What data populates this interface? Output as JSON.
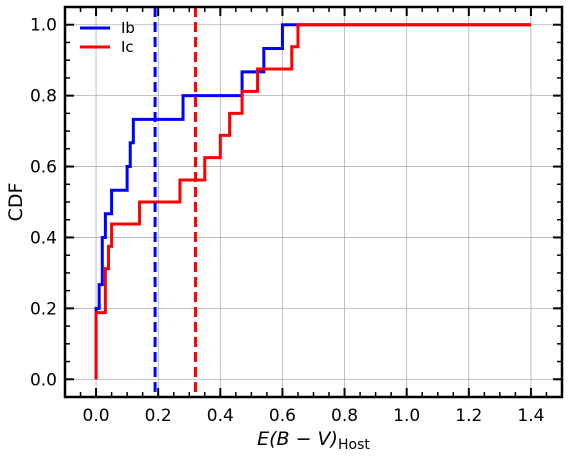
{
  "chart_data": {
    "type": "line",
    "step": "post",
    "title": "",
    "xlabel_main": "E(B − V)",
    "xlabel_sub": "Host",
    "ylabel": "CDF",
    "xlim": [
      -0.1,
      1.5
    ],
    "ylim": [
      -0.05,
      1.05
    ],
    "xticks": [
      0.0,
      0.2,
      0.4,
      0.6,
      0.8,
      1.0,
      1.2,
      1.4
    ],
    "xtick_labels": [
      "0.0",
      "0.2",
      "0.4",
      "0.6",
      "0.8",
      "1.0",
      "1.2",
      "1.4"
    ],
    "yticks": [
      0.0,
      0.2,
      0.4,
      0.6,
      0.8,
      1.0
    ],
    "ytick_labels": [
      "0.0",
      "0.2",
      "0.4",
      "0.6",
      "0.8",
      "1.0"
    ],
    "grid": true,
    "legend_position": "upper-left",
    "series": [
      {
        "name": "Ib",
        "color": "#0000ff",
        "x": [
          0.0,
          0.0,
          0.01,
          0.02,
          0.03,
          0.05,
          0.1,
          0.11,
          0.12,
          0.28,
          0.47,
          0.54,
          0.6,
          1.4
        ],
        "y": [
          0.0,
          0.2,
          0.267,
          0.4,
          0.467,
          0.533,
          0.6,
          0.667,
          0.733,
          0.8,
          0.867,
          0.933,
          1.0,
          1.0
        ],
        "mean_line": 0.19
      },
      {
        "name": "Ic",
        "color": "#ff0000",
        "x": [
          0.0,
          0.0,
          0.03,
          0.04,
          0.05,
          0.14,
          0.27,
          0.35,
          0.4,
          0.43,
          0.47,
          0.52,
          0.63,
          0.65,
          1.4
        ],
        "y": [
          0.0,
          0.188,
          0.312,
          0.375,
          0.438,
          0.5,
          0.562,
          0.625,
          0.688,
          0.75,
          0.812,
          0.875,
          0.938,
          1.0,
          1.0
        ],
        "mean_line": 0.32
      }
    ]
  }
}
